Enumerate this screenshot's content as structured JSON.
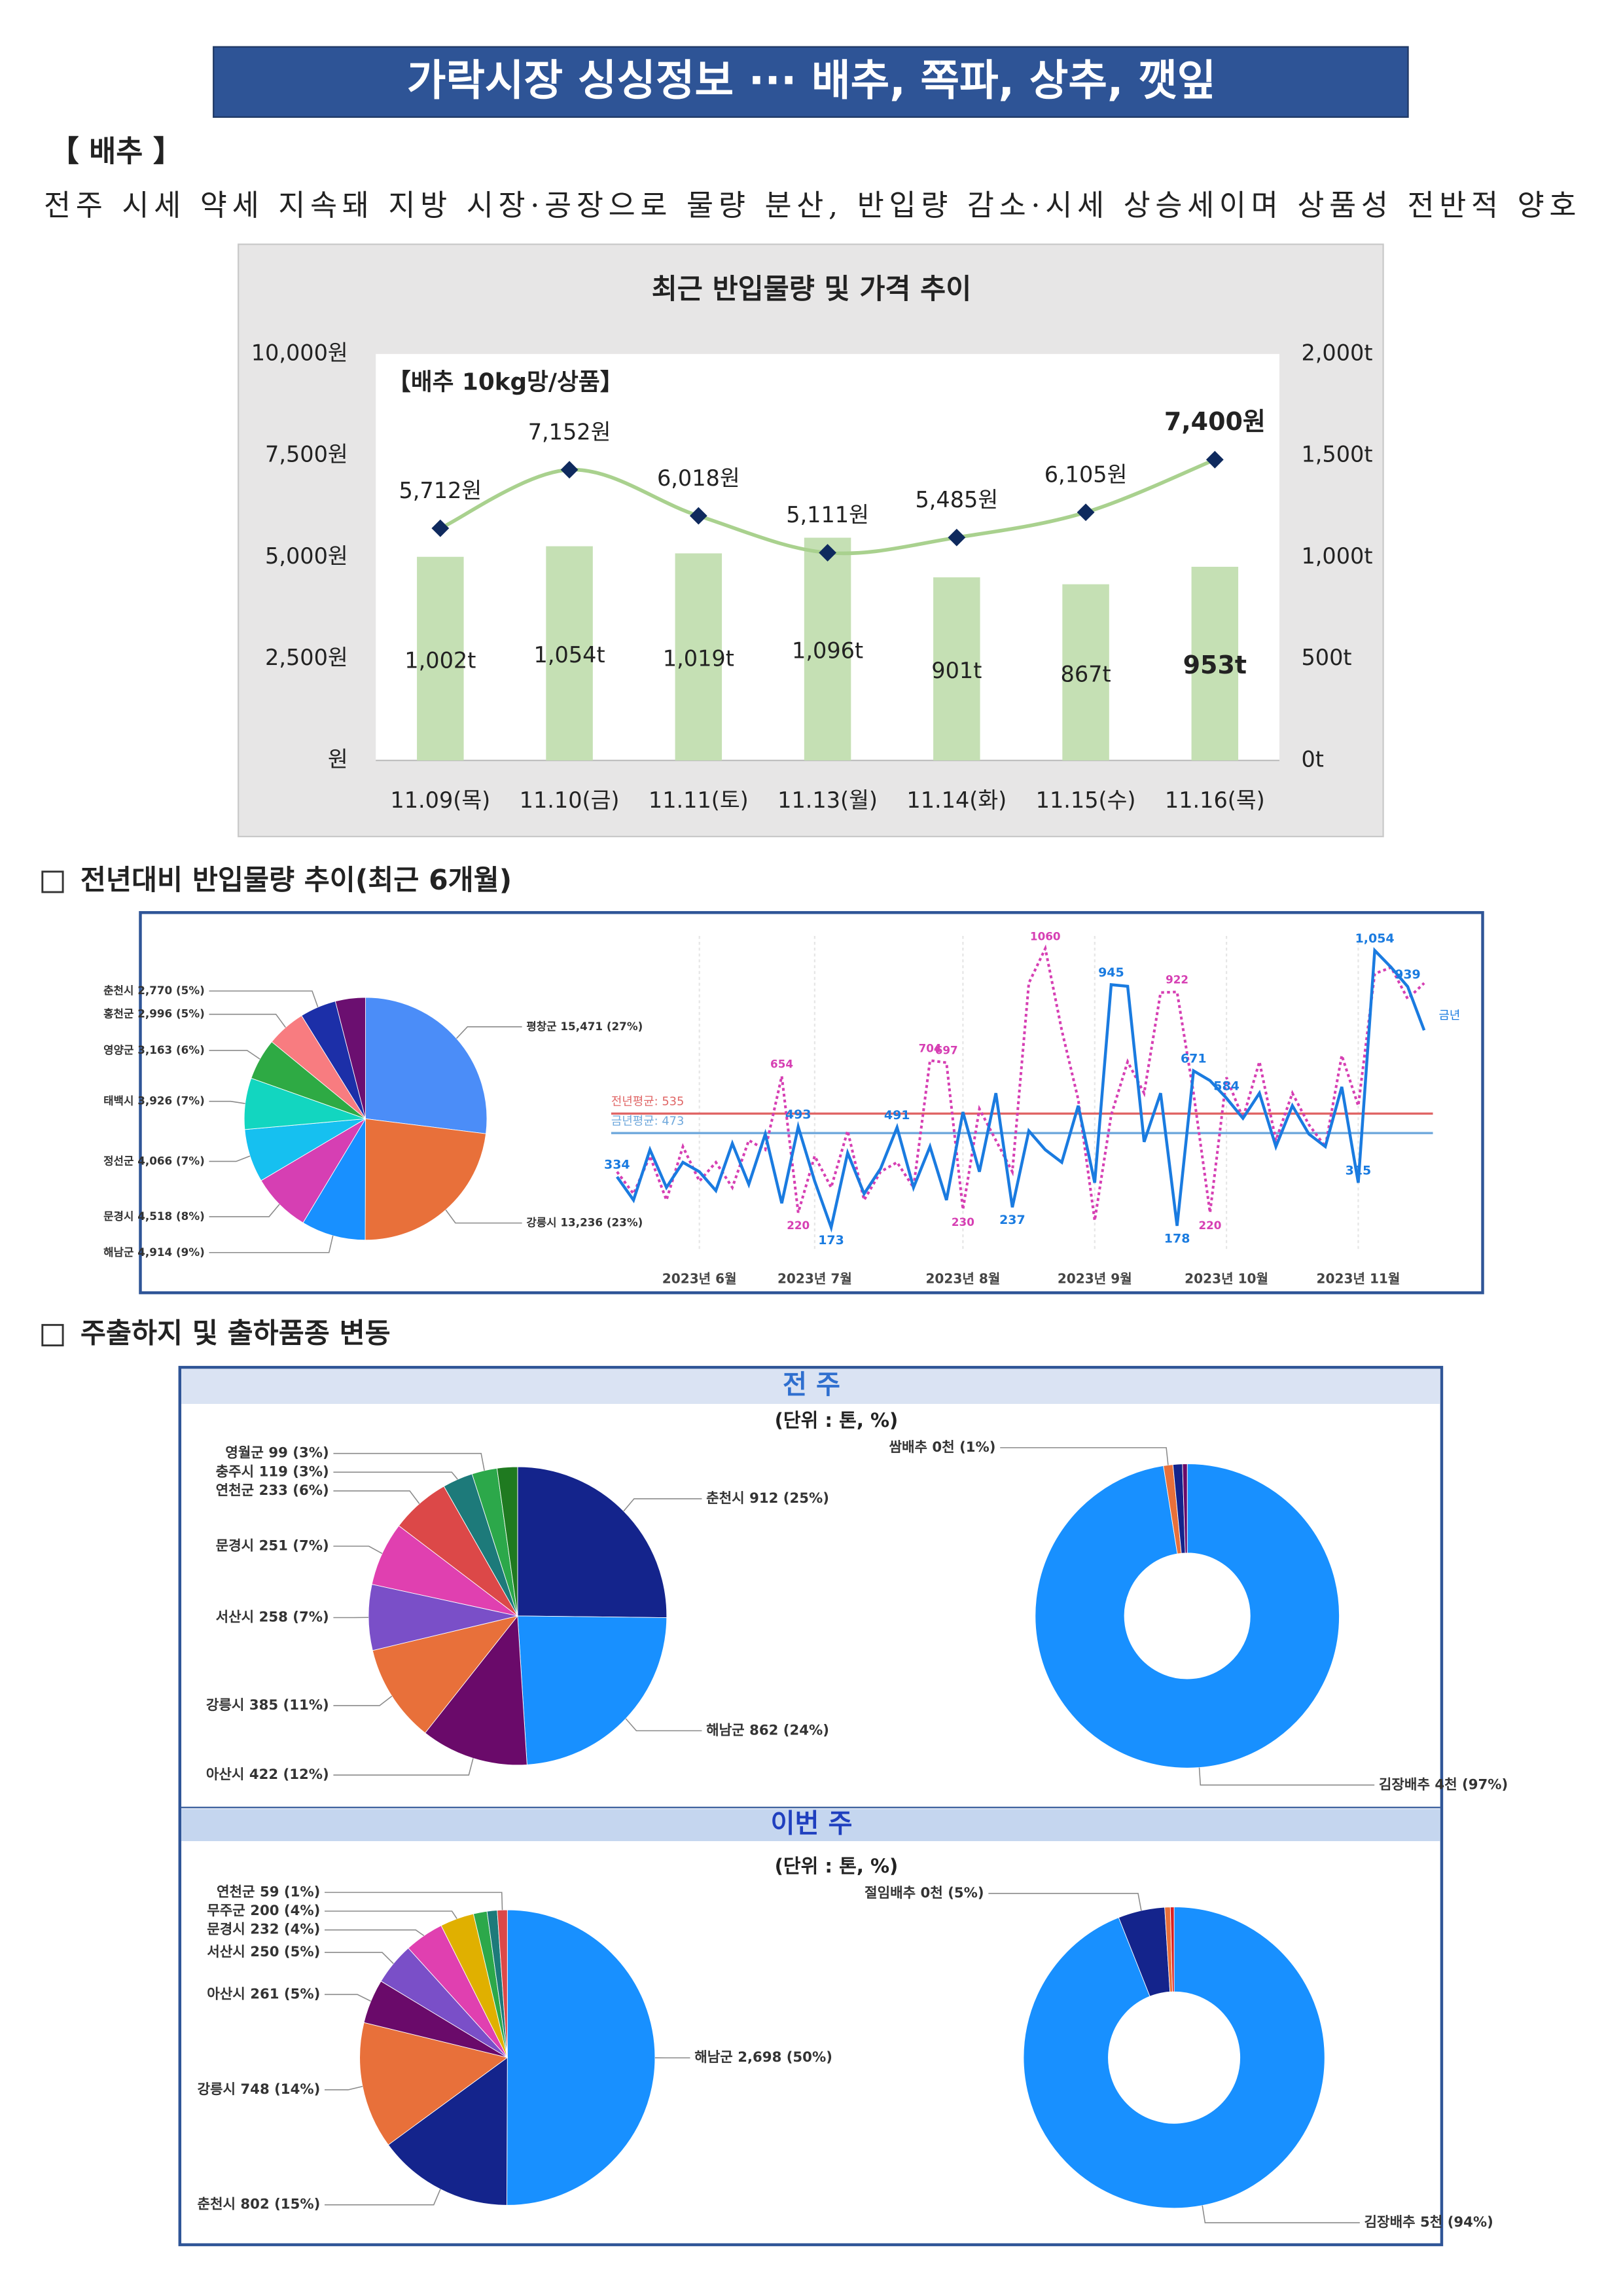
{
  "title": "가락시장 싱싱정보 ··· 배추, 쪽파, 상추, 깻잎",
  "section": "【 배추 】",
  "summary": "전주 시세 약세 지속돼 지방 시장·공장으로 물량 분산, 반입량 감소·시세 상승세이며 상품성 전반적 양호",
  "headings": [
    "전년대비 반입물량 추이(최근 6개월)",
    "주출하지 및 출하품종 변동"
  ],
  "panels": [
    {
      "title": "전 주",
      "unit": "(단위 : 톤, %)"
    },
    {
      "title": "이번 주",
      "unit": "(단위 : 톤, %)"
    }
  ],
  "chart_data": [
    {
      "type": "combo",
      "title": "최근 반입물량 및 가격 추이",
      "annotation": "【배추 10kg망/상품】",
      "categories": [
        "11.09(목)",
        "11.10(금)",
        "11.11(토)",
        "11.13(월)",
        "11.14(화)",
        "11.15(수)",
        "11.16(목)"
      ],
      "series": [
        {
          "type": "bar",
          "axis": "y2",
          "color": "#c5e0b4",
          "values": [
            1002,
            1054,
            1019,
            1096,
            901,
            867,
            953
          ],
          "value_labels": [
            "1,002t",
            "1,054t",
            "1,019t",
            "1,096t",
            "901t",
            "867t",
            "953t"
          ]
        },
        {
          "type": "line",
          "color": "#a9d18e",
          "marker_color": "#0f2a5e",
          "values": [
            5712,
            7152,
            6018,
            5111,
            5485,
            6105,
            7400
          ],
          "value_labels": [
            "5,712원",
            "7,152원",
            "6,018원",
            "5,111원",
            "5,485원",
            "6,105원",
            "7,400원"
          ]
        }
      ],
      "ylim": [
        0,
        10000
      ],
      "yticks": [
        {
          "value": 0,
          "label": "원"
        },
        {
          "value": 2500,
          "label": "2,500원"
        },
        {
          "value": 5000,
          "label": "5,000원"
        },
        {
          "value": 7500,
          "label": "7,500원"
        },
        {
          "value": 10000,
          "label": "10,000원"
        }
      ],
      "y2lim": [
        0,
        2000
      ],
      "y2ticks": [
        {
          "value": 0,
          "label": "0t"
        },
        {
          "value": 500,
          "label": "500t"
        },
        {
          "value": 1000,
          "label": "1,000t"
        },
        {
          "value": 1500,
          "label": "1,500t"
        },
        {
          "value": 2000,
          "label": "2,000t"
        }
      ],
      "bold_last_label": true
    },
    {
      "type": "pie",
      "categories": [
        "평창군",
        "강릉시",
        "해남군",
        "문경시",
        "정선군",
        "태백시",
        "영양군",
        "홍천군",
        "춘천시",
        null
      ],
      "values": [
        15471,
        13236,
        4914,
        4518,
        4066,
        3926,
        3163,
        2996,
        2770,
        2300
      ],
      "value_labels": [
        "15,471 (27%)",
        "13,236 (23%)",
        "4,914 (9%)",
        "4,518 (8%)",
        "4,066 (7%)",
        "3,926 (7%)",
        "3,163 (6%)",
        "2,996 (5%)",
        "2,770 (5%)",
        null
      ],
      "colors": [
        "#4b8df8",
        "#e8703a",
        "#1890ff",
        "#d63fb3",
        "#16c0f0",
        "#12d6c0",
        "#2eaa44",
        "#f87c80",
        "#1c2fa8",
        "#6b0f70"
      ]
    },
    {
      "type": "line",
      "categories": [
        null,
        null,
        null,
        null,
        null,
        "2023년 6월",
        null,
        null,
        null,
        null,
        null,
        null,
        "2023년 7월",
        null,
        null,
        null,
        null,
        null,
        null,
        null,
        null,
        "2023년 8월",
        null,
        null,
        null,
        null,
        null,
        null,
        null,
        "2023년 9월",
        null,
        null,
        null,
        null,
        null,
        null,
        null,
        "2023년 10월",
        null,
        null,
        null,
        null,
        null,
        null,
        null,
        "2023년 11월",
        null,
        null,
        null,
        null
      ],
      "series": [
        {
          "name": "금년",
          "color": "#1a7be0",
          "dash": "solid",
          "values": [
            334,
            260,
            420,
            300,
            380,
            350,
            290,
            440,
            310,
            470,
            250,
            493,
            320,
            173,
            410,
            280,
            360,
            491,
            300,
            430,
            260,
            540,
            350,
            600,
            237,
            480,
            420,
            380,
            560,
            315,
            945,
            940,
            445,
            600,
            178,
            671,
            640,
            584,
            520,
            600,
            430,
            560,
            470,
            430,
            620,
            315,
            1054,
            1000,
            939,
            800
          ],
          "value_labels": [
            "334",
            null,
            null,
            null,
            null,
            null,
            null,
            null,
            null,
            null,
            null,
            "493",
            null,
            "173",
            null,
            null,
            null,
            "491",
            null,
            null,
            null,
            null,
            null,
            null,
            "237",
            null,
            null,
            null,
            null,
            null,
            "945",
            null,
            null,
            null,
            "178",
            "671",
            null,
            "584",
            null,
            null,
            null,
            null,
            null,
            null,
            null,
            "315",
            "1,054",
            null,
            "939",
            null
          ]
        },
        {
          "color": "#d63fb3",
          "dash": "dotted",
          "values": [
            350,
            280,
            400,
            260,
            430,
            320,
            380,
            300,
            450,
            420,
            654,
            220,
            400,
            300,
            480,
            260,
            350,
            380,
            300,
            704,
            697,
            230,
            550,
            450,
            350,
            950,
            1060,
            800,
            580,
            195,
            530,
            700,
            600,
            920,
            922,
            600,
            220,
            650,
            520,
            700,
            450,
            600,
            500,
            430,
            720,
            560,
            980,
            1000,
            900,
            950
          ],
          "value_labels": [
            null,
            null,
            null,
            null,
            null,
            null,
            null,
            null,
            null,
            null,
            "654",
            "220",
            null,
            null,
            null,
            null,
            null,
            null,
            null,
            "704",
            "697",
            "230",
            null,
            null,
            null,
            null,
            "1060",
            null,
            null,
            null,
            null,
            null,
            null,
            null,
            "922",
            null,
            "220",
            null,
            null,
            null,
            null,
            null,
            null,
            null,
            null,
            null,
            null,
            null,
            null,
            null
          ]
        }
      ],
      "reference_lines": [
        {
          "label": "전년평균: 535",
          "value": 535,
          "color": "#e06666"
        },
        {
          "label": "금년평균: 473",
          "value": 473,
          "color": "#6fa8dc"
        }
      ],
      "ylim": [
        100,
        1100
      ]
    },
    {
      "type": "pie",
      "categories": [
        "춘천시",
        "해남군",
        "아산시",
        "강릉시",
        "서산시",
        "문경시",
        "연천군",
        "충주시",
        "영월군",
        null
      ],
      "values": [
        912,
        862,
        422,
        385,
        258,
        251,
        233,
        119,
        99,
        80
      ],
      "value_labels": [
        "912 (25%)",
        "862 (24%)",
        "422 (12%)",
        "385 (11%)",
        "258 (7%)",
        "251 (7%)",
        "233 (6%)",
        "119 (3%)",
        "99 (3%)",
        null
      ],
      "colors": [
        "#14248c",
        "#1890ff",
        "#6a0a6a",
        "#e8703a",
        "#7a4fc8",
        "#e040b0",
        "#dc4848",
        "#1d7a7a",
        "#2ca84a",
        "#1f7a20"
      ]
    },
    {
      "type": "donut",
      "categories": [
        "김장배추",
        "쌈배추",
        null,
        null
      ],
      "values": [
        97,
        1,
        1,
        0.5
      ],
      "value_labels": [
        "4천 (97%)",
        "0천 (1%)",
        null,
        null
      ],
      "colors": [
        "#1890ff",
        "#e8703a",
        "#14248c",
        "#6a0a6a"
      ]
    },
    {
      "type": "pie",
      "categories": [
        "해남군",
        "춘천시",
        "강릉시",
        "아산시",
        "서산시",
        "문경시",
        "무주군",
        null,
        null,
        "연천군"
      ],
      "values": [
        2698,
        802,
        748,
        261,
        250,
        232,
        200,
        80,
        60,
        59
      ],
      "value_labels": [
        "2,698 (50%)",
        "802 (15%)",
        "748 (14%)",
        "261 (5%)",
        "250 (5%)",
        "232 (4%)",
        "200 (4%)",
        null,
        null,
        "59 (1%)"
      ],
      "colors": [
        "#1890ff",
        "#14248c",
        "#e8703a",
        "#6a0a6a",
        "#7a4fc8",
        "#e040b0",
        "#e0b000",
        "#2ca84a",
        "#1d7a7a",
        "#dc4848"
      ]
    },
    {
      "type": "donut",
      "categories": [
        "김장배추",
        "절임배추",
        null,
        null
      ],
      "values": [
        94,
        5,
        0.6,
        0.4
      ],
      "value_labels": [
        "5천 (94%)",
        "0천 (5%)",
        null,
        null
      ],
      "colors": [
        "#1890ff",
        "#14248c",
        "#e8703a",
        "#dc2020"
      ]
    }
  ]
}
